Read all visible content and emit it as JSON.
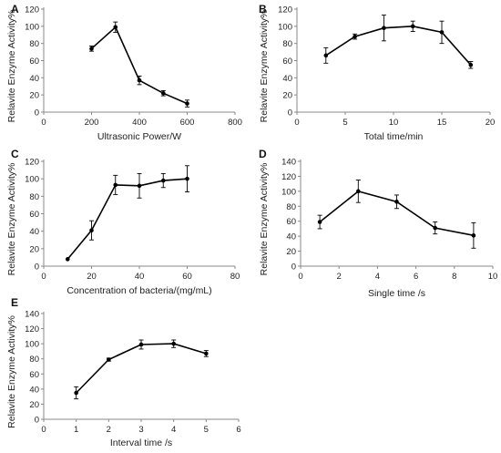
{
  "chart_data": [
    {
      "panel": "A",
      "type": "line",
      "xlabel": "Ultrasonic Power/W",
      "ylabel": "Relavite Enzyme Activity%",
      "xlim": [
        0,
        800
      ],
      "xticks": [
        0,
        200,
        400,
        600,
        800
      ],
      "ylim": [
        0,
        120
      ],
      "yticks": [
        0,
        20,
        40,
        60,
        80,
        100,
        120
      ],
      "x": [
        200,
        300,
        400,
        500,
        600
      ],
      "y": [
        74,
        99,
        37,
        22,
        10
      ],
      "err": [
        3,
        6,
        5,
        3,
        4
      ]
    },
    {
      "panel": "B",
      "type": "line",
      "xlabel": "Total time/min",
      "ylabel": "Relavite Enzyme Activity%",
      "xlim": [
        0,
        20
      ],
      "xticks": [
        0,
        5,
        10,
        15,
        20
      ],
      "ylim": [
        0,
        120
      ],
      "yticks": [
        0,
        20,
        40,
        60,
        80,
        100,
        120
      ],
      "x": [
        3,
        6,
        9,
        12,
        15,
        18
      ],
      "y": [
        66,
        88,
        98,
        100,
        93,
        55
      ],
      "err": [
        9,
        3,
        15,
        6,
        13,
        4
      ]
    },
    {
      "panel": "C",
      "type": "line",
      "xlabel": "Concentration of bacteria/(mg/mL)",
      "ylabel": "Relavite Enzyme Activity%",
      "xlim": [
        0,
        80
      ],
      "xticks": [
        0,
        20,
        40,
        60,
        80
      ],
      "ylim": [
        0,
        120
      ],
      "yticks": [
        0,
        20,
        40,
        60,
        80,
        100,
        120
      ],
      "x": [
        10,
        20,
        30,
        40,
        50,
        60
      ],
      "y": [
        8,
        41,
        93,
        92,
        98,
        100
      ],
      "err": [
        0,
        11,
        11,
        14,
        8,
        15
      ]
    },
    {
      "panel": "D",
      "type": "line",
      "xlabel": "Single time /s",
      "ylabel": "Relavite Enzyme Activity%",
      "xlim": [
        0,
        10
      ],
      "xticks": [
        0,
        2,
        4,
        6,
        8,
        10
      ],
      "ylim": [
        0,
        140
      ],
      "yticks": [
        0,
        20,
        40,
        60,
        80,
        100,
        120,
        140
      ],
      "x": [
        1,
        3,
        5,
        7,
        9
      ],
      "y": [
        59,
        100,
        86,
        51,
        41
      ],
      "err": [
        9,
        15,
        9,
        8,
        17
      ]
    },
    {
      "panel": "E",
      "type": "line",
      "xlabel": "Interval time /s",
      "ylabel": "Relavite Enzyme Activity%",
      "xlim": [
        0,
        6
      ],
      "xticks": [
        0,
        1,
        2,
        3,
        4,
        5,
        6
      ],
      "ylim": [
        0,
        140
      ],
      "yticks": [
        0,
        20,
        40,
        60,
        80,
        100,
        120,
        140
      ],
      "x": [
        1,
        2,
        3,
        4,
        5
      ],
      "y": [
        35,
        79,
        99,
        100,
        87
      ],
      "err": [
        8,
        2,
        6,
        5,
        4
      ]
    }
  ]
}
